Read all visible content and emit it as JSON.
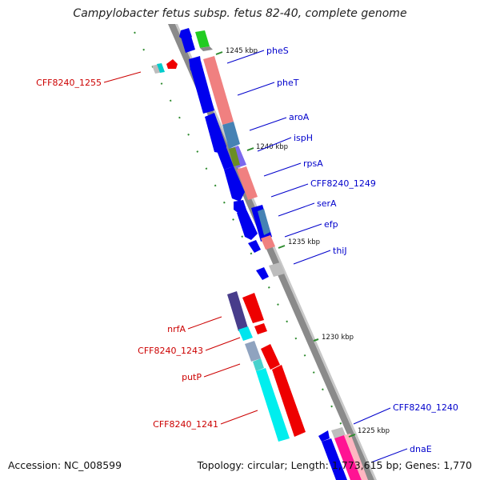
{
  "title": "Campylobacter fetus subsp. fetus 82-40, complete genome",
  "footer": {
    "accession": "Accession: NC_008599",
    "stats": "Topology: circular; Length: 1,773,615 bp; Genes: 1,770"
  },
  "colors": {
    "forward_label": "#0000cc",
    "reverse_label": "#cc0000",
    "backbone": "#808080",
    "tick": "#2e8b2e"
  },
  "ticks": [
    "1245 kbp",
    "1240 kbp",
    "1235 kbp",
    "1230 kbp",
    "1225 kbp"
  ],
  "forward_genes": [
    "pheS",
    "pheT",
    "aroA",
    "ispH",
    "rpsA",
    "CFF8240_1249",
    "serA",
    "efp",
    "thiJ",
    "CFF8240_1240",
    "dnaE"
  ],
  "reverse_genes": [
    "CFF8240_1255",
    "nrfA",
    "CFF8240_1243",
    "putP",
    "CFF8240_1241"
  ]
}
